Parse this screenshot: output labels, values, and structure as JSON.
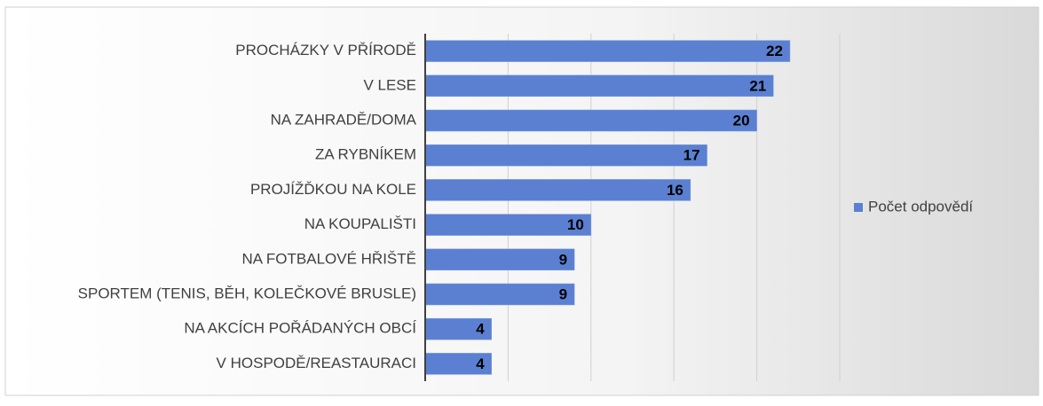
{
  "chart_data": {
    "type": "barh",
    "categories": [
      "PROCHÁZKY V PŘÍRODĚ",
      "V LESE",
      "NA ZAHRADĚ/DOMA",
      "ZA RYBNÍKEM",
      "PROJÍŽĎKOU NA KOLE",
      "NA KOUPALIŠTI",
      "NA FOTBALOVÉ HŘIŠTĚ",
      "SPORTEM (TENIS, BĚH, KOLEČKOVÉ BRUSLE)",
      "NA AKCÍCH POŘÁDANÝCH OBCÍ",
      "V HOSPODĚ/REASTAURACI"
    ],
    "series": [
      {
        "name": "Počet odpovědí",
        "color": "#5b80d2",
        "values": [
          22,
          21,
          20,
          17,
          16,
          10,
          9,
          9,
          4,
          4
        ]
      }
    ],
    "xlim": [
      0,
      25
    ],
    "xticks": [
      0,
      5,
      10,
      15,
      20,
      25
    ],
    "grid": true,
    "legend": "right"
  }
}
